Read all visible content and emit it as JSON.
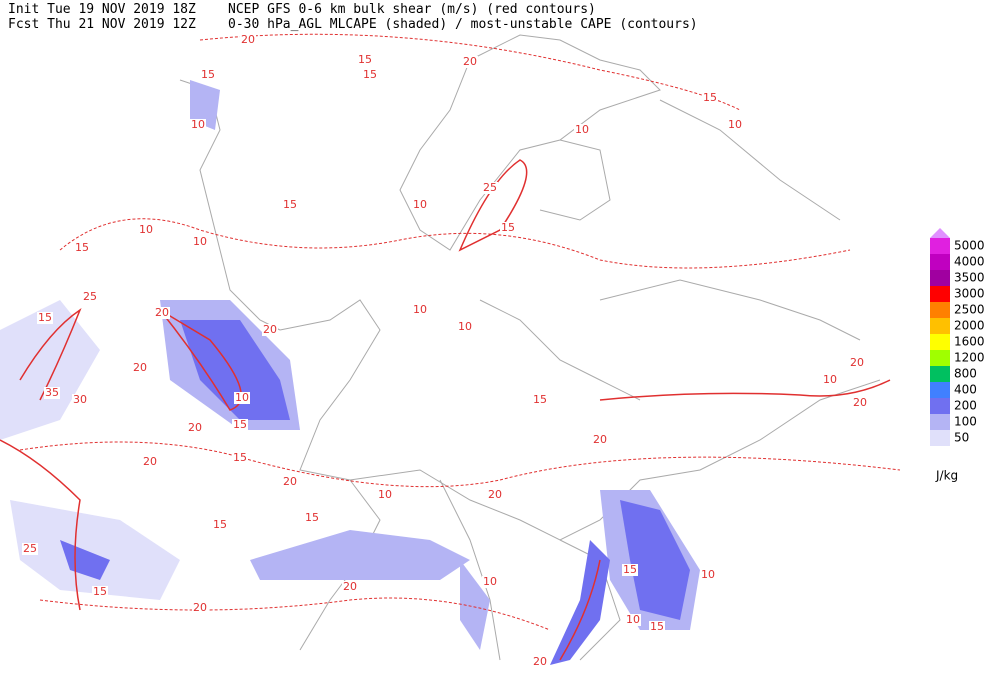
{
  "header": {
    "init": "Init  Tue 19 NOV 2019 18Z",
    "fcst": "Fcst Thu 21 NOV 2019 12Z",
    "line1": "NCEP GFS 0-6 km bulk shear (m/s) (red contours)",
    "line2": "0-30 hPa_AGL MLCAPE (shaded) / most-unstable CAPE (contours)"
  },
  "legend": {
    "levels": [
      5000,
      4000,
      3500,
      3000,
      2500,
      2000,
      1600,
      1200,
      800,
      400,
      200,
      100,
      50
    ],
    "colors": [
      "#e020e0",
      "#c000c0",
      "#a000a0",
      "#ff0000",
      "#ff8000",
      "#ffc000",
      "#ffff00",
      "#a0ff00",
      "#00c060",
      "#4080ff",
      "#7070f0",
      "#b4b4f4",
      "#e0e0fa"
    ],
    "top_color": "#e090ff",
    "unit": "J/kg"
  },
  "contour_labels": [
    20,
    15,
    15,
    15,
    20,
    10,
    15,
    10,
    10,
    25,
    10,
    15,
    15,
    10,
    15,
    10,
    25,
    20,
    15,
    20,
    10,
    10,
    35,
    30,
    20,
    10,
    15,
    20,
    15,
    20,
    20,
    20,
    10,
    10,
    20,
    15,
    15,
    25,
    15,
    20,
    20,
    10,
    15,
    10,
    15,
    20,
    10,
    20,
    15,
    20
  ]
}
